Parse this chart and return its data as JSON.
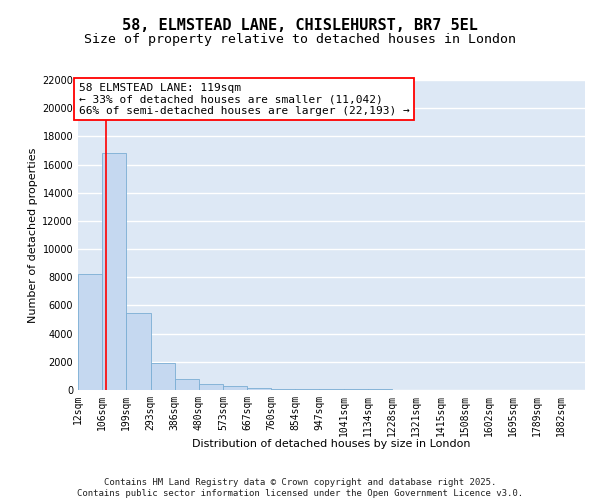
{
  "title": "58, ELMSTEAD LANE, CHISLEHURST, BR7 5EL",
  "subtitle": "Size of property relative to detached houses in London",
  "xlabel": "Distribution of detached houses by size in London",
  "ylabel": "Number of detached properties",
  "bar_color": "#c5d8f0",
  "bar_edge_color": "#7aadd4",
  "background_color": "#dde8f5",
  "grid_color": "#ffffff",
  "bin_labels": [
    "12sqm",
    "106sqm",
    "199sqm",
    "293sqm",
    "386sqm",
    "480sqm",
    "573sqm",
    "667sqm",
    "760sqm",
    "854sqm",
    "947sqm",
    "1041sqm",
    "1134sqm",
    "1228sqm",
    "1321sqm",
    "1415sqm",
    "1508sqm",
    "1602sqm",
    "1695sqm",
    "1789sqm",
    "1882sqm"
  ],
  "bin_edges": [
    12,
    106,
    199,
    293,
    386,
    480,
    573,
    667,
    760,
    854,
    947,
    1041,
    1134,
    1228,
    1321,
    1415,
    1508,
    1602,
    1695,
    1789,
    1882
  ],
  "bar_heights": [
    8200,
    16800,
    5500,
    1900,
    750,
    400,
    250,
    150,
    100,
    80,
    60,
    50,
    40,
    30,
    20,
    15,
    10,
    8,
    5,
    3
  ],
  "ylim": [
    0,
    22000
  ],
  "yticks": [
    0,
    2000,
    4000,
    6000,
    8000,
    10000,
    12000,
    14000,
    16000,
    18000,
    20000,
    22000
  ],
  "red_line_x": 119,
  "annotation_line1": "58 ELMSTEAD LANE: 119sqm",
  "annotation_line2": "← 33% of detached houses are smaller (11,042)",
  "annotation_line3": "66% of semi-detached houses are larger (22,193) →",
  "footer_text": "Contains HM Land Registry data © Crown copyright and database right 2025.\nContains public sector information licensed under the Open Government Licence v3.0.",
  "title_fontsize": 11,
  "subtitle_fontsize": 9.5,
  "axis_label_fontsize": 8,
  "tick_fontsize": 7,
  "annotation_fontsize": 8,
  "footer_fontsize": 6.5
}
